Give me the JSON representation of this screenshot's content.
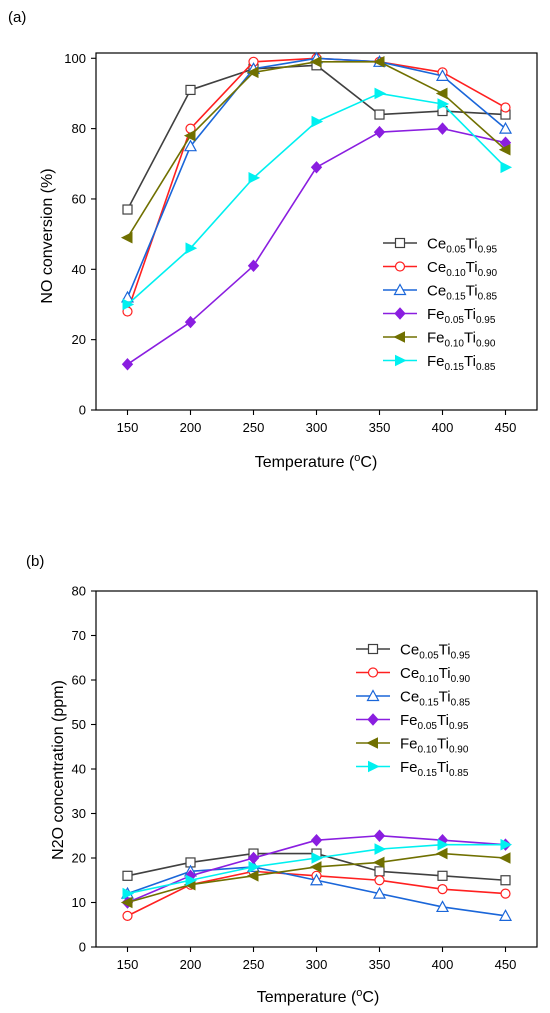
{
  "chart_data": [
    {
      "panel_label": "(a)",
      "type": "line",
      "xlabel": "Temperature (",
      "xlabel_sup": "o",
      "xlabel_tail": "C)",
      "ylabel": "NO conversion (%)",
      "xlim": [
        125,
        475
      ],
      "ylim": [
        0,
        101.5
      ],
      "xticks": [
        150,
        200,
        250,
        300,
        350,
        400,
        450
      ],
      "yticks": [
        0,
        20,
        40,
        60,
        80,
        100
      ],
      "legend_position": "bottom-right",
      "grid": false,
      "x": [
        150,
        200,
        250,
        300,
        350,
        400,
        450
      ],
      "series": [
        {
          "name": "Ce0.05Ti0.95",
          "label_main": "Ce",
          "sub1": "0.05",
          "label_mid": "Ti",
          "sub2": "0.95",
          "color": "#404040",
          "marker": "square-open",
          "values": [
            57,
            91,
            97,
            98,
            84,
            85,
            84
          ]
        },
        {
          "name": "Ce0.10Ti0.90",
          "label_main": "Ce",
          "sub1": "0.10",
          "label_mid": "Ti",
          "sub2": "0.90",
          "color": "#ff2020",
          "marker": "circle-open",
          "values": [
            28,
            80,
            99,
            100,
            99,
            96,
            86
          ]
        },
        {
          "name": "Ce0.15Ti0.85",
          "label_main": "Ce",
          "sub1": "0.15",
          "label_mid": "Ti",
          "sub2": "0.85",
          "color": "#1a66d9",
          "marker": "triangle-up-open",
          "values": [
            32,
            75,
            97,
            100,
            99,
            95,
            80
          ]
        },
        {
          "name": "Fe0.05Ti0.95",
          "label_main": "Fe",
          "sub1": "0.05",
          "label_mid": "Ti",
          "sub2": "0.95",
          "color": "#8a1ee0",
          "marker": "diamond-filled",
          "values": [
            13,
            25,
            41,
            69,
            79,
            80,
            76
          ]
        },
        {
          "name": "Fe0.10Ti0.90",
          "label_main": "Fe",
          "sub1": "0.10",
          "label_mid": "Ti",
          "sub2": "0.90",
          "color": "#707000",
          "marker": "triangle-left-filled",
          "values": [
            49,
            78,
            96,
            99,
            99,
            90,
            74
          ]
        },
        {
          "name": "Fe0.15Ti0.85",
          "label_main": "Fe",
          "sub1": "0.15",
          "label_mid": "Ti",
          "sub2": "0.85",
          "color": "#00f0f0",
          "marker": "triangle-right-filled",
          "values": [
            30,
            46,
            66,
            82,
            90,
            87,
            69
          ]
        }
      ]
    },
    {
      "panel_label": "(b)",
      "type": "line",
      "xlabel": "Temperature (",
      "xlabel_sup": "o",
      "xlabel_tail": "C)",
      "ylabel": "N2O concentration (ppm)",
      "xlim": [
        125,
        475
      ],
      "ylim": [
        0,
        80
      ],
      "xticks": [
        150,
        200,
        250,
        300,
        350,
        400,
        450
      ],
      "yticks": [
        0,
        10,
        20,
        30,
        40,
        50,
        60,
        70,
        80
      ],
      "legend_position": "top-right",
      "grid": false,
      "x": [
        150,
        200,
        250,
        300,
        350,
        400,
        450
      ],
      "series": [
        {
          "name": "Ce0.05Ti0.95",
          "label_main": "Ce",
          "sub1": "0.05",
          "label_mid": "Ti",
          "sub2": "0.95",
          "color": "#404040",
          "marker": "square-open",
          "values": [
            16,
            19,
            21,
            21,
            17,
            16,
            15
          ]
        },
        {
          "name": "Ce0.10Ti0.90",
          "label_main": "Ce",
          "sub1": "0.10",
          "label_mid": "Ti",
          "sub2": "0.90",
          "color": "#ff2020",
          "marker": "circle-open",
          "values": [
            7,
            14,
            17,
            16,
            15,
            13,
            12
          ]
        },
        {
          "name": "Ce0.15Ti0.85",
          "label_main": "Ce",
          "sub1": "0.15",
          "label_mid": "Ti",
          "sub2": "0.85",
          "color": "#1a66d9",
          "marker": "triangle-up-open",
          "values": [
            12,
            17,
            18,
            15,
            12,
            9,
            7
          ]
        },
        {
          "name": "Fe0.05Ti0.95",
          "label_main": "Fe",
          "sub1": "0.05",
          "label_mid": "Ti",
          "sub2": "0.95",
          "color": "#8a1ee0",
          "marker": "diamond-filled",
          "values": [
            10,
            16,
            20,
            24,
            25,
            24,
            23
          ]
        },
        {
          "name": "Fe0.10Ti0.90",
          "label_main": "Fe",
          "sub1": "0.10",
          "label_mid": "Ti",
          "sub2": "0.90",
          "color": "#707000",
          "marker": "triangle-left-filled",
          "values": [
            10,
            14,
            16,
            18,
            19,
            21,
            20
          ]
        },
        {
          "name": "Fe0.15Ti0.85",
          "label_main": "Fe",
          "sub1": "0.15",
          "label_mid": "Ti",
          "sub2": "0.85",
          "color": "#00f0f0",
          "marker": "triangle-right-filled",
          "values": [
            12,
            15,
            18,
            20,
            22,
            23,
            23
          ]
        }
      ]
    }
  ]
}
